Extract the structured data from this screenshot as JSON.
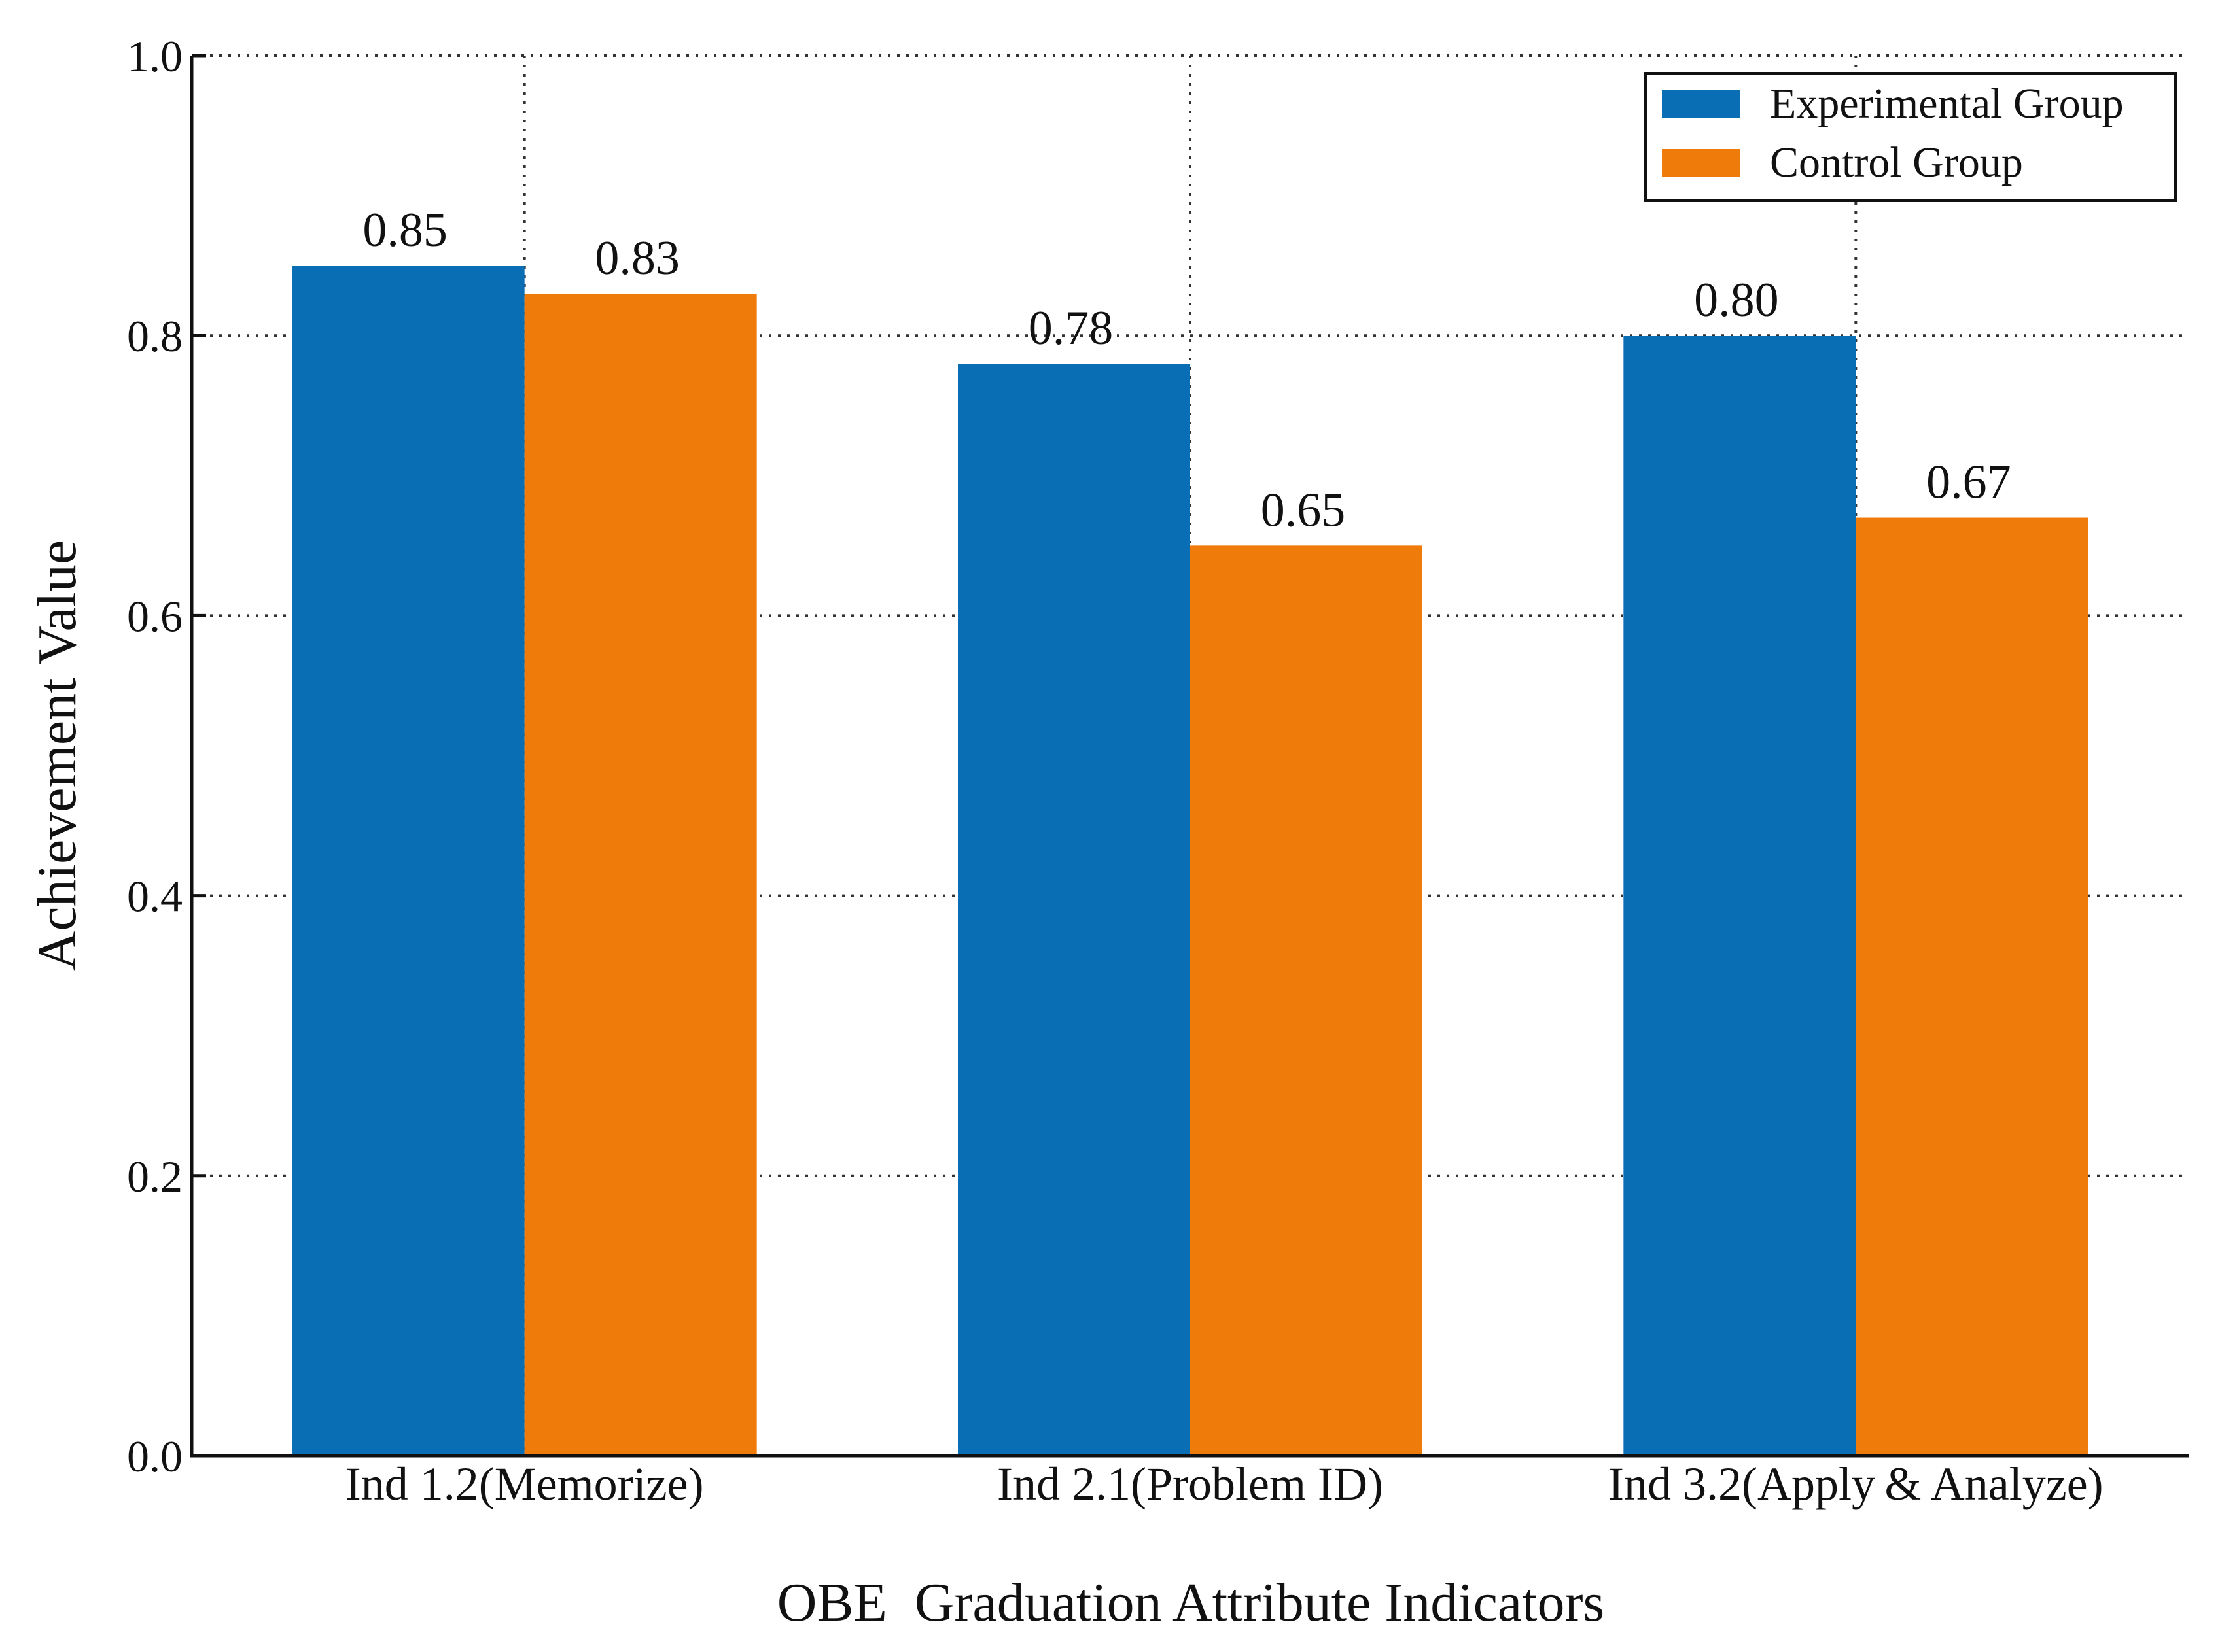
{
  "chart_data": {
    "type": "bar",
    "title": "",
    "xlabel": "OBE  Graduation Attribute Indicators",
    "ylabel": "Achievement Value",
    "categories": [
      "Ind 1.2(Memorize)",
      "Ind 2.1(Problem ID)",
      "Ind 3.2(Apply & Analyze)"
    ],
    "series": [
      {
        "name": "Experimental Group",
        "color": "#0a6eb4",
        "values": [
          0.85,
          0.78,
          0.8
        ],
        "labels": [
          "0.85",
          "0.78",
          "0.80"
        ]
      },
      {
        "name": "Control Group",
        "color": "#ef7b0a",
        "values": [
          0.83,
          0.65,
          0.67
        ],
        "labels": [
          "0.83",
          "0.65",
          "0.67"
        ]
      }
    ],
    "ylim": [
      0.0,
      1.0
    ],
    "yticks": [
      0.0,
      0.2,
      0.4,
      0.6,
      0.8,
      1.0
    ],
    "ytick_labels": [
      "0.0",
      "0.2",
      "0.4",
      "0.6",
      "0.8",
      "1.0"
    ],
    "grid": true,
    "grid_style": "dotted",
    "legend_position": "top-right"
  }
}
